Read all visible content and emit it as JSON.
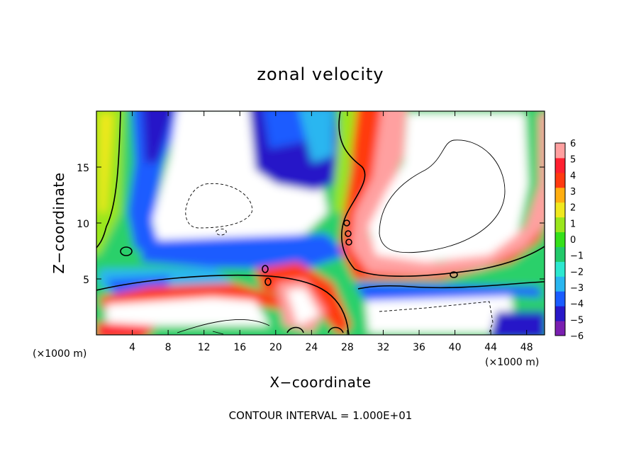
{
  "chart_data": {
    "type": "heatmap",
    "title": "zonal velocity",
    "xlabel": "X−coordinate",
    "ylabel": "Z−coordinate",
    "x_unit": "(×1000 m)",
    "footer": "CONTOUR INTERVAL = 1.000E+01",
    "xlim": [
      0,
      50
    ],
    "ylim": [
      0,
      20
    ],
    "x_ticks": [
      4,
      8,
      12,
      16,
      20,
      24,
      28,
      32,
      36,
      40,
      44,
      48
    ],
    "x_tick_labels": [
      "4",
      "8",
      "12",
      "16",
      "20",
      "24",
      "28",
      "32",
      "36",
      "40",
      "44",
      "48"
    ],
    "y_ticks": [
      5,
      10,
      15
    ],
    "y_tick_labels": [
      "5",
      "10",
      "15"
    ],
    "colorbar": {
      "min": -6,
      "max": 6,
      "labels": [
        "6",
        "5",
        "4",
        "3",
        "2",
        "1",
        "0",
        "−1",
        "−2",
        "−3",
        "−4",
        "−5",
        "−6"
      ],
      "colors": [
        "#7a1fb0",
        "#2818c8",
        "#1a5cff",
        "#29b6f0",
        "#2ce8d0",
        "#22c96a",
        "#35e01a",
        "#9ae61c",
        "#f0e81e",
        "#ffae10",
        "#ff3a10",
        "#ff2030",
        "#ffa0a0"
      ]
    },
    "grid": false,
    "legend": "colorbar right"
  }
}
